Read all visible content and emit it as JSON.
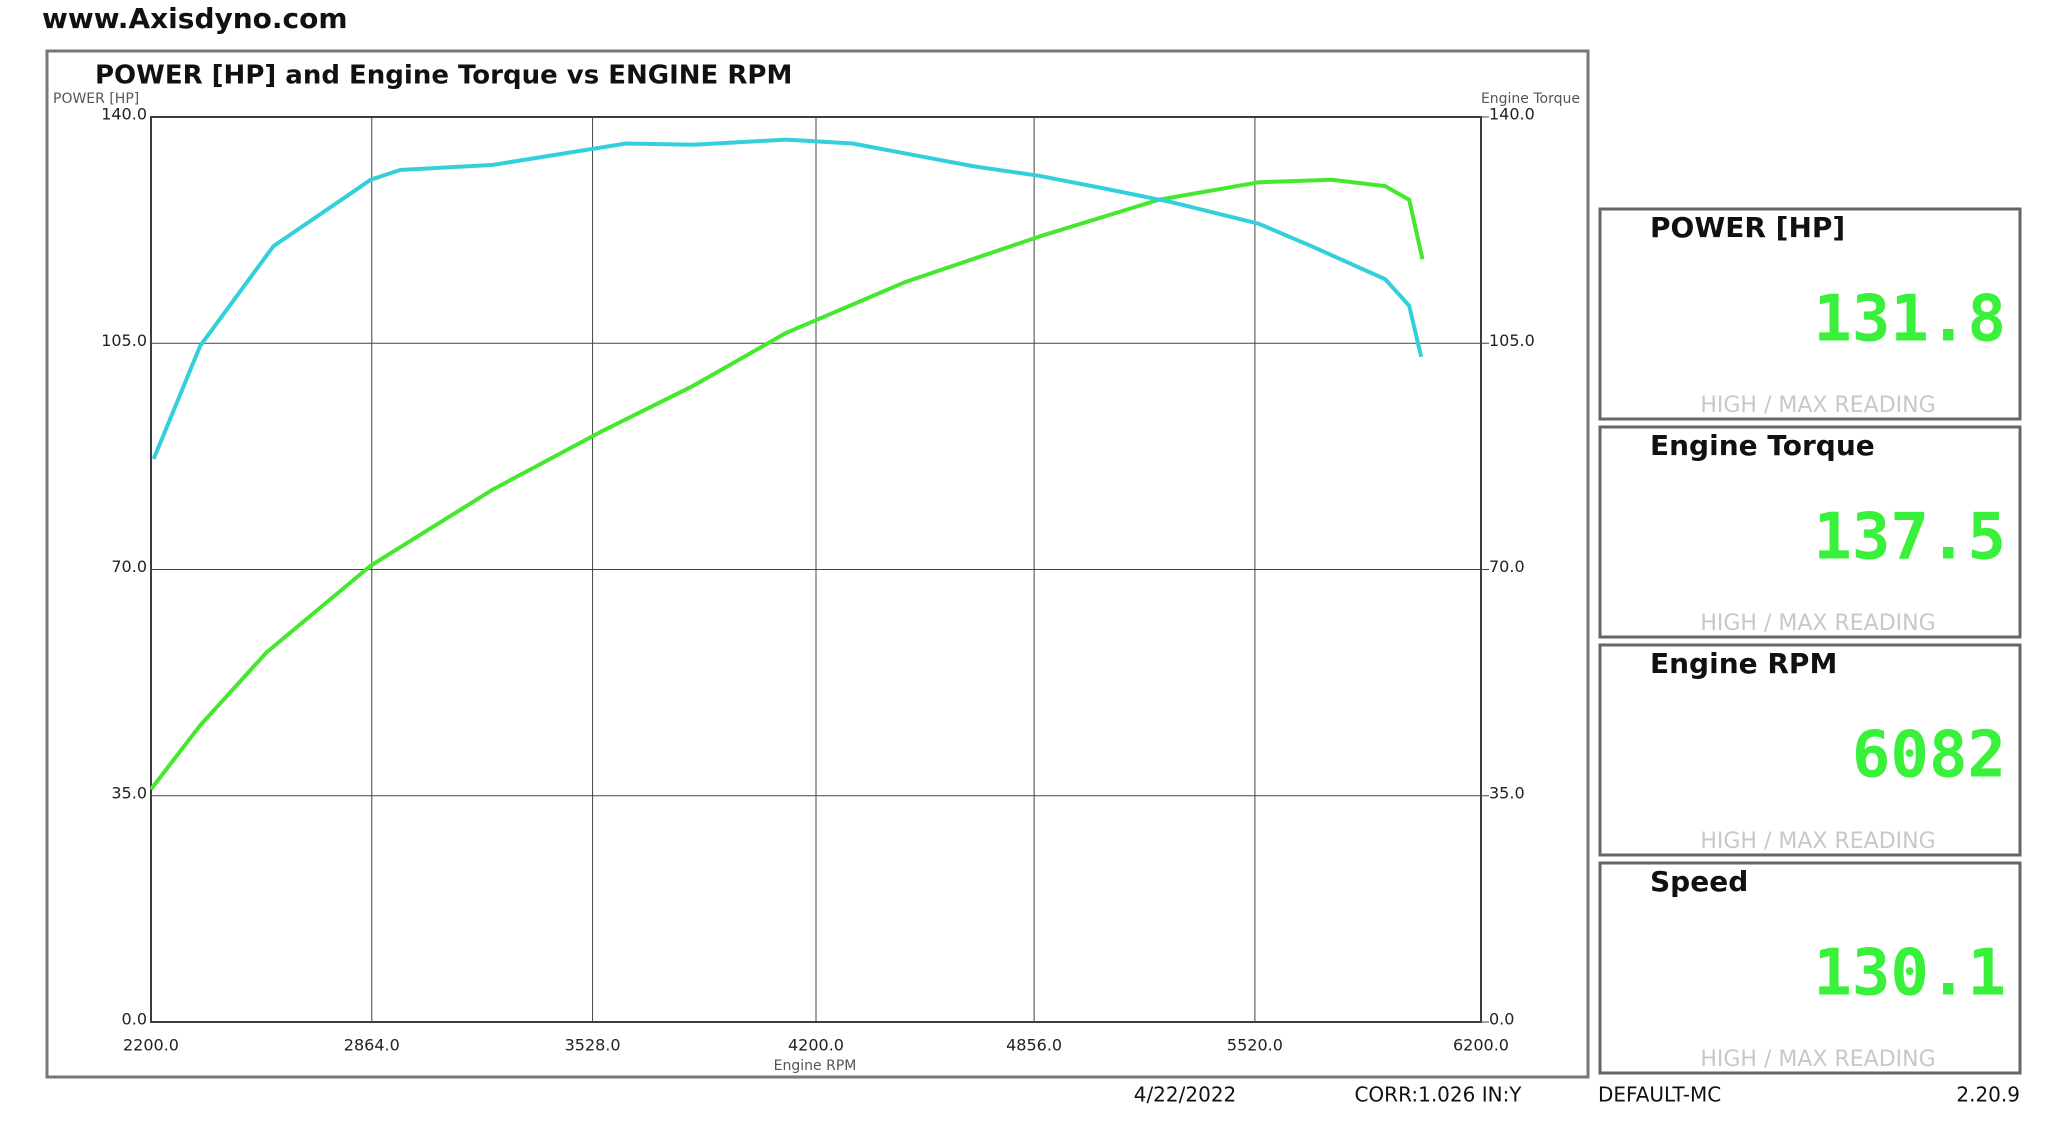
{
  "site": "www.Axisdyno.com",
  "chart_data": {
    "type": "line",
    "title": "POWER [HP] and Engine Torque vs ENGINE RPM",
    "ylabel": "POWER [HP]",
    "y2label": "Engine Torque",
    "xlabel": "Engine RPM",
    "xlim": [
      2200,
      6200
    ],
    "xticks": [
      {
        "value": 2200,
        "label": "2200.0"
      },
      {
        "value": 2864,
        "label": "2864.0"
      },
      {
        "value": 3528,
        "label": "3528.0"
      },
      {
        "value": 4200,
        "label": "4200.0"
      },
      {
        "value": 4856,
        "label": "4856.0"
      },
      {
        "value": 5520,
        "label": "5520.0"
      },
      {
        "value": 6200,
        "label": "6200.0"
      }
    ],
    "ylim": [
      0,
      140
    ],
    "yticks": [
      {
        "value": 0,
        "label": "0.0"
      },
      {
        "value": 35,
        "label": "35.0"
      },
      {
        "value": 70,
        "label": "70.0"
      },
      {
        "value": 105,
        "label": "105.0"
      },
      {
        "value": 140,
        "label": "140.0"
      }
    ],
    "y2lim": [
      0,
      140
    ],
    "y2ticks": [
      {
        "value": 0,
        "label": "0.0"
      },
      {
        "value": 35,
        "label": "35.0"
      },
      {
        "value": 70,
        "label": "70.0"
      },
      {
        "value": 105,
        "label": "105.0"
      },
      {
        "value": 140,
        "label": "140.0"
      }
    ],
    "grid": true,
    "series": [
      {
        "name": "POWER [HP]",
        "color": "#44e82c",
        "x": [
          2200,
          2348,
          2548,
          2861,
          3229,
          3549,
          3830,
          4110,
          4470,
          4871,
          5231,
          5531,
          5751,
          5912,
          5984,
          6024
        ],
        "values": [
          36.0,
          45.9,
          57.2,
          70.6,
          82.4,
          91.2,
          98.4,
          106.6,
          114.5,
          121.5,
          127.2,
          129.9,
          130.3,
          129.3,
          127.2,
          118.0
        ]
      },
      {
        "name": "Engine Torque",
        "color": "#33d0dc",
        "axis": "y2",
        "x": [
          2208,
          2348,
          2568,
          2861,
          2949,
          3229,
          3629,
          3830,
          4110,
          4310,
          4671,
          4871,
          5071,
          5271,
          5531,
          5691,
          5912,
          5984,
          6020
        ],
        "values": [
          87.1,
          104.6,
          120.0,
          130.3,
          131.8,
          132.6,
          135.9,
          135.7,
          136.5,
          135.9,
          132.4,
          130.9,
          128.9,
          126.8,
          123.5,
          120.0,
          114.9,
          110.8,
          102.9
        ]
      }
    ]
  },
  "panels": [
    {
      "title": "POWER [HP]",
      "value": "131.8",
      "caption": "HIGH / MAX READING"
    },
    {
      "title": "Engine Torque",
      "value": "137.5",
      "caption": "HIGH / MAX READING"
    },
    {
      "title": "Engine RPM",
      "value": "6082",
      "caption": "HIGH / MAX READING"
    },
    {
      "title": "Speed",
      "value": "130.1",
      "caption": "HIGH / MAX READING"
    }
  ],
  "footer": {
    "date": "4/22/2022",
    "corr": "CORR:1.026 IN:Y",
    "profile": "DEFAULT-MC",
    "version": "2.20.9"
  }
}
